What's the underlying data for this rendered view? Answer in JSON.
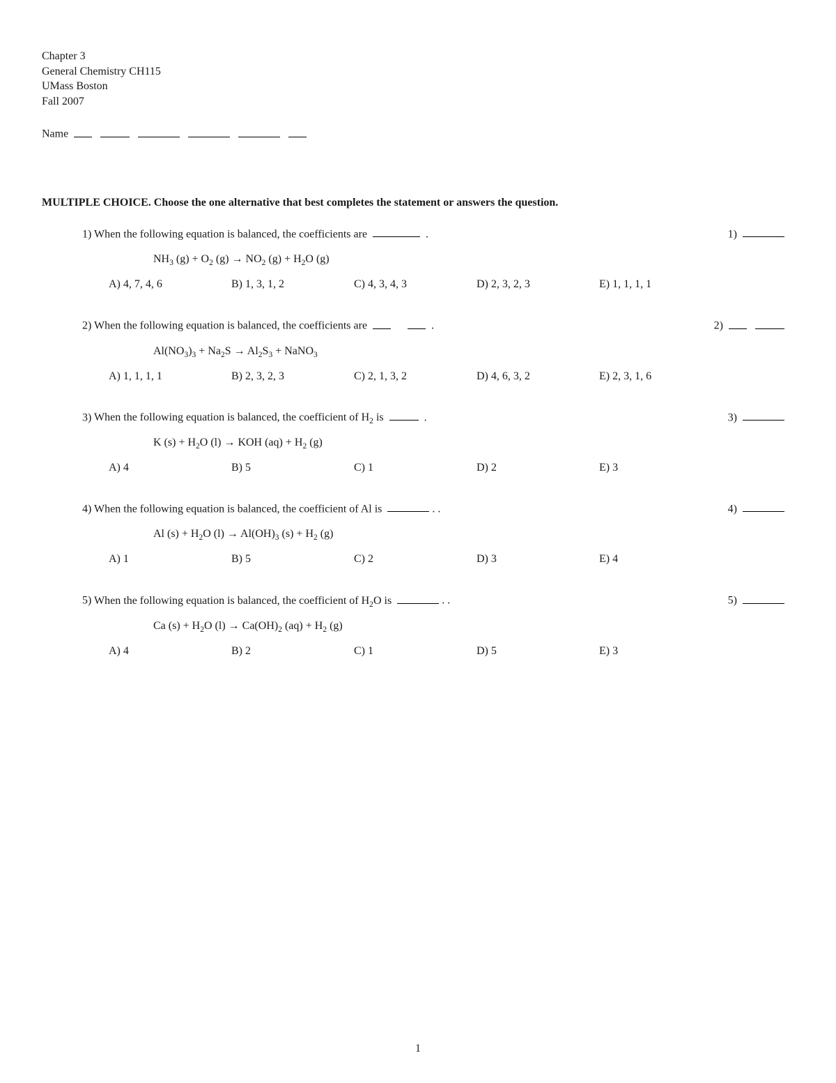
{
  "header": {
    "l1": "Chapter 3",
    "l2": "General  Chemistry CH115",
    "l3": "UMass Boston",
    "l4": "Fall 2007",
    "name_label": "Name"
  },
  "section": {
    "lead": "MULTIPLE CHOICE.",
    "rest": "  Choose the one alternative that best completes the statement or answers the question."
  },
  "blank_char": "________",
  "q1": {
    "num_left": "1)",
    "stem_before": "When the following equation is balanced, the coefficients are ",
    "stem_after": "   .",
    "eq": "NH₃ (g) + O₂ (g)  →  NO₂ (g) + H₂O  (g)",
    "a": "A) 4, 7, 4, 6",
    "b": "B) 1, 3, 1, 2",
    "c": "C) 4, 3, 4, 3",
    "d": "D) 2, 3, 2, 3",
    "e": "E) 1, 1, 1, 1",
    "num_right": "1)"
  },
  "q2": {
    "num_left": "2)",
    "stem_before": "When the following equation is balanced, the coefficients are ",
    "stem_after": "       .",
    "eq": "Al(NO₃)₃  +  Na₂S  →  Al₂S₃  +  NaNO₃",
    "a": "A) 1, 1, 1, 1",
    "b": "B) 2, 3, 2, 3",
    "c": "C) 2, 1, 3, 2",
    "d": "D) 4, 6, 3, 2",
    "e": "E) 2, 3, 1, 6",
    "num_right": "2)"
  },
  "q3": {
    "num_left": "3)",
    "stem_before": "When the following equation is balanced, the coefficient of H₂ is ",
    "stem_after": "        .",
    "eq": "K (s)  +  H₂O (l)  →  KOH (aq)  +  H₂ (g)",
    "a": "A) 4",
    "b": "B) 5",
    "c": "C) 1",
    "d": "D) 2",
    "e": "E) 3",
    "num_right": "3)"
  },
  "q4": {
    "num_left": "4)",
    "stem_before": "When the following equation is balanced, the coefficient of Al is ",
    "stem_after": ".   .",
    "eq": "Al (s) +  H₂O (l)  →   Al(OH)₃ (s)  +  H₂ (g)",
    "a": "A) 1",
    "b": "B) 5",
    "c": "C) 2",
    "d": "D) 3",
    "e": "E) 4",
    "num_right": "4)"
  },
  "q5": {
    "num_left": "5)",
    "stem_before": "When the following equation is balanced, the coefficient of H₂O is ",
    "stem_after": ".    .",
    "eq": "Ca (s) +  H₂O (l)   →  Ca(OH)₂ (aq)  +  H₂ (g)",
    "a": "A) 4",
    "b": "B) 2",
    "c": "C) 1",
    "d": "D) 5",
    "e": "E) 3",
    "num_right": "5)"
  },
  "page_number": "1"
}
